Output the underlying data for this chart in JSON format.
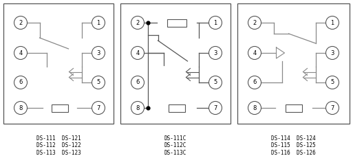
{
  "fig_width": 5.13,
  "fig_height": 2.27,
  "dpi": 100,
  "bg_color": "#ffffff",
  "border_color": "#666666",
  "lc": "#888888",
  "lc2": "#555555",
  "labels": [
    "DS-111  DS-121\nDS-112  DS-122\nDS-113  DS-123",
    "DS-111C\nDS-112C\nDS-113C",
    "DS-114  DS-124\nDS-115  DS-125\nDS-116  DS-126"
  ]
}
